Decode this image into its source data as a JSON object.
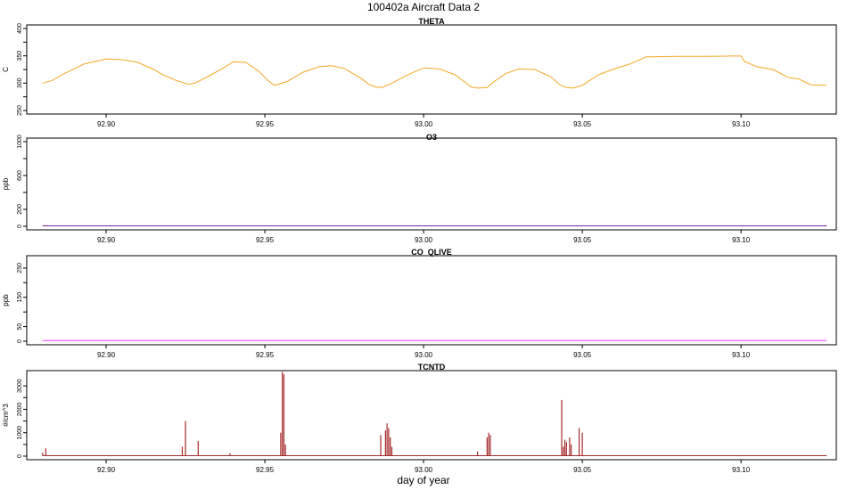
{
  "figure": {
    "title": "100402a   Aircraft Data 2",
    "xlabel": "day of year"
  },
  "chart_data": [
    {
      "type": "line",
      "title": "THETA",
      "ylabel": "C",
      "xlim": [
        92.875,
        93.13
      ],
      "ylim": [
        250,
        400
      ],
      "xticks": [
        92.9,
        92.95,
        93.0,
        93.05,
        93.1
      ],
      "xtick_labels": [
        "92.90",
        "92.95",
        "93.00",
        "93.05",
        "93.10"
      ],
      "yticks": [
        250,
        300,
        350,
        400
      ],
      "ytick_labels": [
        "250",
        "300",
        "350",
        "400"
      ],
      "color": "#f5a623",
      "series": [
        {
          "x": [
            92.88,
            92.883,
            92.887,
            92.893,
            92.9,
            92.905,
            92.91,
            92.915,
            92.918,
            92.922,
            92.926,
            92.928,
            92.932,
            92.937,
            92.94,
            92.944,
            92.948,
            92.951,
            92.953,
            92.957,
            92.962,
            92.967,
            92.971,
            92.975,
            92.98,
            92.983,
            92.985,
            92.987,
            92.99,
            92.995,
            93.0,
            93.005,
            93.01,
            93.013,
            93.015,
            93.017,
            93.02,
            93.022,
            93.026,
            93.03,
            93.035,
            93.04,
            93.043,
            93.045,
            93.047,
            93.05,
            93.055,
            93.06,
            93.065,
            93.07,
            93.08,
            93.09,
            93.1,
            93.101,
            93.105,
            93.11,
            93.115,
            93.118,
            93.122,
            93.127
          ],
          "y": [
            300,
            305,
            318,
            335,
            344,
            343,
            338,
            325,
            315,
            305,
            298,
            300,
            312,
            328,
            339,
            338,
            322,
            305,
            296,
            303,
            320,
            330,
            332,
            327,
            310,
            297,
            293,
            292,
            300,
            315,
            328,
            326,
            315,
            302,
            293,
            291,
            292,
            302,
            318,
            326,
            325,
            312,
            297,
            292,
            291,
            296,
            315,
            326,
            335,
            348,
            349,
            349,
            350,
            340,
            330,
            325,
            310,
            308,
            297,
            296
          ]
        }
      ]
    },
    {
      "type": "line",
      "title": "O3",
      "ylabel": "ppb",
      "xlim": [
        92.875,
        93.13
      ],
      "ylim": [
        0,
        1000
      ],
      "xticks": [
        92.9,
        92.95,
        93.0,
        93.05,
        93.1
      ],
      "xtick_labels": [
        "92.90",
        "92.95",
        "93.00",
        "93.05",
        "93.10"
      ],
      "yticks": [
        0,
        200,
        600,
        1000
      ],
      "ytick_labels": [
        "0",
        "200",
        "600",
        "1000"
      ],
      "color": "#7b1fa2",
      "series": [
        {
          "x": [
            92.88,
            93.127
          ],
          "y": [
            5,
            5
          ]
        }
      ]
    },
    {
      "type": "line",
      "title": "CO_QLIVE",
      "ylabel": "ppb",
      "xlim": [
        92.875,
        93.13
      ],
      "ylim": [
        0,
        280
      ],
      "xticks": [
        92.9,
        92.95,
        93.0,
        93.05,
        93.1
      ],
      "xtick_labels": [
        "92.90",
        "92.95",
        "93.00",
        "93.05",
        "93.10"
      ],
      "yticks": [
        0,
        50,
        150,
        250
      ],
      "ytick_labels": [
        "0",
        "50",
        "150",
        "250"
      ],
      "color": "#e040fb",
      "series": [
        {
          "x": [
            92.88,
            93.127
          ],
          "y": [
            2,
            2
          ]
        }
      ]
    },
    {
      "type": "line",
      "title": "TCNTD",
      "ylabel": "#/cm^3",
      "xlim": [
        92.875,
        93.13
      ],
      "ylim": [
        0,
        3500
      ],
      "xticks": [
        92.9,
        92.95,
        93.0,
        93.05,
        93.1
      ],
      "xtick_labels": [
        "92.90",
        "92.95",
        "93.00",
        "93.05",
        "93.10"
      ],
      "yticks": [
        0,
        1000,
        2000,
        3000
      ],
      "ytick_labels": [
        "0",
        "1000",
        "2000",
        "3000"
      ],
      "color": "#a52a2a",
      "baseline": 20,
      "spikes": {
        "x": [
          92.88,
          92.881,
          92.9195,
          92.924,
          92.925,
          92.929,
          92.939,
          92.955,
          92.9555,
          92.956,
          92.9565,
          92.9865,
          92.988,
          92.9885,
          92.989,
          92.9895,
          92.99,
          93.017,
          93.02,
          93.0205,
          93.021,
          93.0435,
          93.044,
          93.0445,
          93.045,
          93.046,
          93.0465,
          93.049,
          93.05
        ],
        "y": [
          150,
          330,
          30,
          400,
          1500,
          650,
          120,
          1000,
          3600,
          3500,
          500,
          900,
          1100,
          1400,
          1200,
          800,
          400,
          200,
          800,
          1000,
          900,
          2400,
          400,
          700,
          600,
          800,
          500,
          1200,
          1000
        ]
      }
    }
  ]
}
